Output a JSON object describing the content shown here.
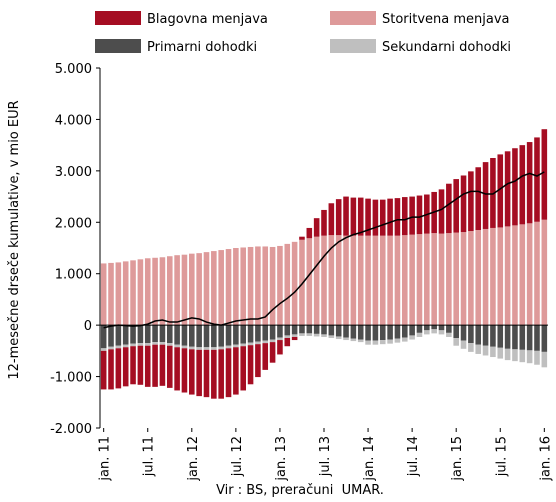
{
  "chart_data": {
    "type": "bar",
    "stacked": true,
    "y_label": "12-mesečne drseče kumulative, v mio EUR",
    "x_label": "Vir : BS, preračuni  UMAR.",
    "categories": [
      "jan. 11",
      null,
      null,
      null,
      null,
      null,
      "jul. 11",
      null,
      null,
      null,
      null,
      null,
      "jan. 12",
      null,
      null,
      null,
      null,
      null,
      "jul. 12",
      null,
      null,
      null,
      null,
      null,
      "jan. 13",
      null,
      null,
      null,
      null,
      null,
      "jul. 13",
      null,
      null,
      null,
      null,
      null,
      "jan. 14",
      null,
      null,
      null,
      null,
      null,
      "jul. 14",
      null,
      null,
      null,
      null,
      null,
      "jan. 15",
      null,
      null,
      null,
      null,
      null,
      "jul. 15",
      null,
      null,
      null,
      null,
      null,
      "jan. 16"
    ],
    "series": [
      {
        "name": "Blagovna menjava",
        "color": "#a50d22",
        "values": [
          -750,
          -780,
          -780,
          -760,
          -740,
          -760,
          -800,
          -820,
          -800,
          -820,
          -840,
          -860,
          -880,
          -900,
          -920,
          -950,
          -960,
          -950,
          -920,
          -860,
          -760,
          -640,
          -520,
          -400,
          -280,
          -160,
          -60,
          60,
          200,
          360,
          500,
          620,
          700,
          760,
          740,
          740,
          720,
          700,
          700,
          720,
          730,
          740,
          740,
          750,
          760,
          800,
          860,
          960,
          1040,
          1100,
          1160,
          1220,
          1300,
          1360,
          1420,
          1460,
          1500,
          1540,
          1580,
          1640,
          1760
        ]
      },
      {
        "name": "Storitvena menjava",
        "color": "#de9a9a",
        "values": [
          1200,
          1210,
          1220,
          1240,
          1260,
          1280,
          1300,
          1310,
          1320,
          1340,
          1360,
          1370,
          1390,
          1400,
          1420,
          1440,
          1460,
          1480,
          1500,
          1510,
          1520,
          1530,
          1530,
          1520,
          1540,
          1580,
          1620,
          1660,
          1690,
          1720,
          1740,
          1750,
          1750,
          1740,
          1740,
          1740,
          1740,
          1740,
          1740,
          1740,
          1740,
          1750,
          1760,
          1770,
          1780,
          1790,
          1780,
          1790,
          1800,
          1810,
          1830,
          1850,
          1870,
          1890,
          1900,
          1920,
          1940,
          1960,
          1980,
          2010,
          2050
        ]
      },
      {
        "name": "Primarni dohodki",
        "color": "#4d4d4d",
        "values": [
          -450,
          -420,
          -400,
          -380,
          -360,
          -350,
          -350,
          -330,
          -330,
          -350,
          -380,
          -400,
          -420,
          -430,
          -430,
          -430,
          -420,
          -400,
          -380,
          -360,
          -340,
          -320,
          -300,
          -280,
          -240,
          -200,
          -180,
          -160,
          -160,
          -170,
          -180,
          -200,
          -220,
          -240,
          -260,
          -280,
          -300,
          -300,
          -290,
          -280,
          -260,
          -240,
          -200,
          -150,
          -100,
          -80,
          -100,
          -150,
          -250,
          -300,
          -350,
          -380,
          -400,
          -420,
          -440,
          -460,
          -470,
          -480,
          -490,
          -500,
          -520
        ]
      },
      {
        "name": "Sekundarni dohodki",
        "color": "#bfbfbf",
        "values": [
          -50,
          -50,
          -50,
          -50,
          -50,
          -50,
          -50,
          -50,
          -50,
          -50,
          -50,
          -50,
          -50,
          -50,
          -50,
          -50,
          -50,
          -50,
          -50,
          -50,
          -50,
          -50,
          -50,
          -50,
          -50,
          -50,
          -50,
          -50,
          -50,
          -50,
          -50,
          -50,
          -50,
          -50,
          -50,
          -50,
          -80,
          -80,
          -80,
          -80,
          -80,
          -80,
          -80,
          -80,
          -80,
          -80,
          -80,
          -80,
          -150,
          -160,
          -170,
          -180,
          -190,
          -200,
          -210,
          -220,
          -230,
          -240,
          -250,
          -270,
          -300
        ]
      }
    ],
    "line": {
      "color": "#000000",
      "values": [
        -50,
        -20,
        0,
        -10,
        -20,
        -10,
        20,
        80,
        100,
        60,
        60,
        100,
        140,
        120,
        60,
        20,
        0,
        40,
        80,
        100,
        120,
        120,
        160,
        300,
        420,
        520,
        640,
        800,
        980,
        1160,
        1340,
        1500,
        1620,
        1700,
        1760,
        1800,
        1850,
        1900,
        1950,
        2000,
        2050,
        2050,
        2100,
        2100,
        2150,
        2200,
        2250,
        2350,
        2450,
        2550,
        2600,
        2600,
        2550,
        2550,
        2650,
        2750,
        2800,
        2900,
        2950,
        2900,
        2980
      ]
    },
    "ylim": [
      -2000,
      5000
    ],
    "yticks": [
      {
        "value": -2000,
        "label": "-2.000"
      },
      {
        "value": -1000,
        "label": "-1.000"
      },
      0,
      {
        "value": 1000,
        "label": "1.000"
      },
      {
        "value": 2000,
        "label": "2.000"
      },
      {
        "value": 3000,
        "label": "3.000"
      },
      {
        "value": 4000,
        "label": "4.000"
      },
      {
        "value": 5000,
        "label": "5.000"
      }
    ],
    "grid": false
  }
}
